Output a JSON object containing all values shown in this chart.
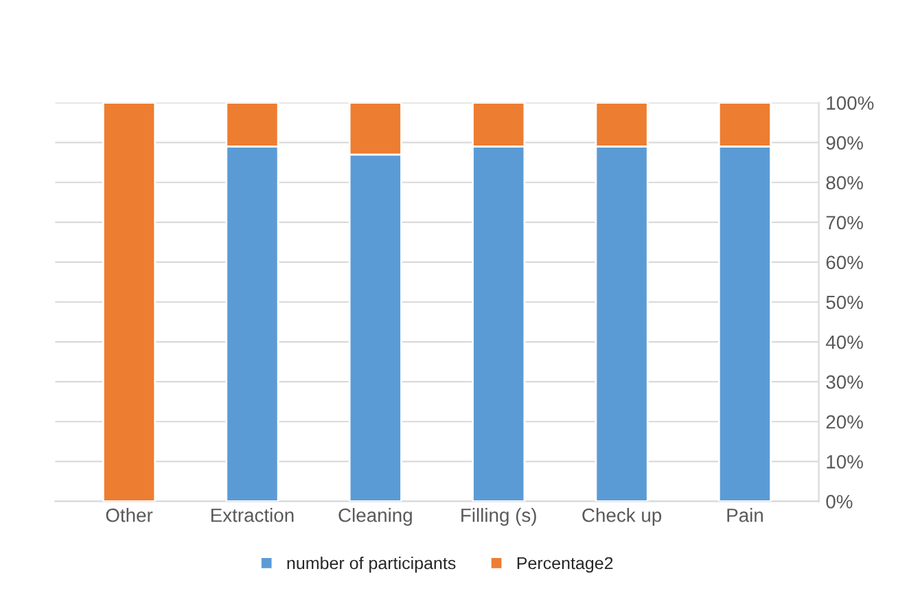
{
  "chart_data": {
    "type": "bar",
    "stacked": true,
    "categories": [
      "Other",
      "Extraction",
      "Cleaning",
      "Filling (s)",
      "Check up",
      "Pain"
    ],
    "series": [
      {
        "name": "number of participants",
        "color": "#5b9bd5",
        "values": [
          0,
          89,
          87,
          89,
          89,
          89
        ]
      },
      {
        "name": "Percentage2",
        "color": "#ed7d31",
        "values": [
          100,
          11,
          13,
          11,
          11,
          11
        ]
      }
    ],
    "ylim": [
      0,
      100
    ],
    "yticks": [
      {
        "value": 0,
        "label": "0%"
      },
      {
        "value": 10,
        "label": "10%"
      },
      {
        "value": 20,
        "label": "20%"
      },
      {
        "value": 30,
        "label": "30%"
      },
      {
        "value": 40,
        "label": "40%"
      },
      {
        "value": 50,
        "label": "50%"
      },
      {
        "value": 60,
        "label": "60%"
      },
      {
        "value": 70,
        "label": "70%"
      },
      {
        "value": 80,
        "label": "80%"
      },
      {
        "value": 90,
        "label": "90%"
      },
      {
        "value": 100,
        "label": "100%"
      }
    ],
    "grid": "y",
    "legend": "bottom"
  }
}
